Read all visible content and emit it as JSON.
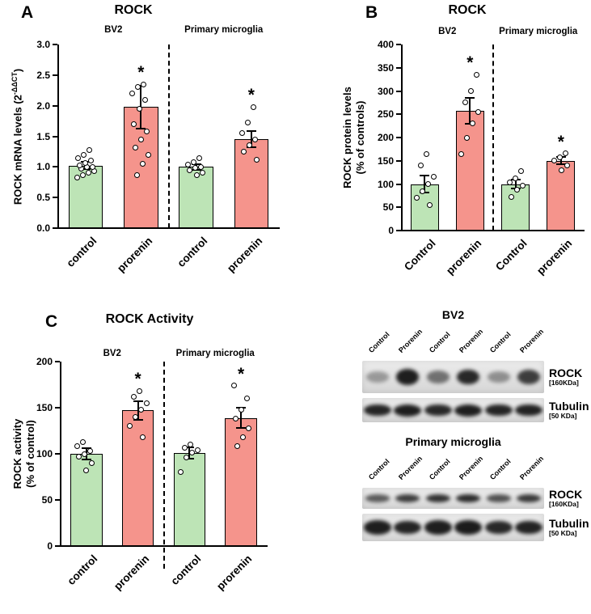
{
  "colors": {
    "control_bar": "#bde4b6",
    "prorenin_bar": "#f5948c",
    "axis": "#000000"
  },
  "chart_data": [
    {
      "id": "A",
      "type": "bar",
      "panel_letter": "A",
      "title": "ROCK",
      "group_labels": [
        "BV2",
        "Primary microglia"
      ],
      "categories": [
        "control",
        "prorenin",
        "control",
        "prorenin"
      ],
      "bar_colors": [
        "control",
        "prorenin",
        "control",
        "prorenin"
      ],
      "values": [
        1.02,
        1.98,
        1.0,
        1.45
      ],
      "errors": [
        0.06,
        0.35,
        0.05,
        0.13
      ],
      "significance": [
        false,
        true,
        false,
        true
      ],
      "significance_marker": "*",
      "points": [
        [
          0.82,
          0.86,
          0.9,
          0.93,
          0.97,
          1.0,
          1.0,
          1.03,
          1.06,
          1.1,
          1.14,
          1.2,
          1.28
        ],
        [
          0.86,
          1.05,
          1.2,
          1.32,
          1.45,
          1.58,
          1.7,
          1.95,
          2.1,
          2.2,
          2.3,
          2.35
        ],
        [
          0.86,
          0.9,
          0.95,
          0.98,
          1.0,
          1.04,
          1.08,
          1.14
        ],
        [
          1.12,
          1.25,
          1.35,
          1.45,
          1.55,
          1.72,
          1.98
        ]
      ],
      "ylabel": {
        "parts": [
          {
            "t": "ROCK mRNA levels (2"
          },
          {
            "t": "-ΔΔCT",
            "sup": true
          },
          {
            "t": ")"
          }
        ]
      },
      "ylim": [
        0,
        3.0
      ],
      "yticks": [
        0.0,
        0.5,
        1.0,
        1.5,
        2.0,
        2.5,
        3.0
      ],
      "ytick_decimals": 1,
      "legend": "off",
      "grid": "off"
    },
    {
      "id": "B",
      "type": "bar",
      "panel_letter": "B",
      "title": "ROCK",
      "group_labels": [
        "BV2",
        "Primary microglia"
      ],
      "categories": [
        "Control",
        "prorenin",
        "Control",
        "prorenin"
      ],
      "bar_colors": [
        "control",
        "prorenin",
        "control",
        "prorenin"
      ],
      "values": [
        100,
        258,
        100,
        150
      ],
      "errors": [
        18,
        28,
        10,
        8
      ],
      "significance": [
        false,
        true,
        false,
        true
      ],
      "significance_marker": "*",
      "points": [
        [
          55,
          70,
          85,
          100,
          115,
          140,
          165
        ],
        [
          165,
          200,
          230,
          255,
          275,
          300,
          335
        ],
        [
          72,
          88,
          96,
          104,
          112,
          128
        ],
        [
          130,
          140,
          150,
          158,
          166
        ]
      ],
      "ylabel": {
        "parts": [
          {
            "t": "ROCK protein levels"
          },
          {
            "br": true
          },
          {
            "t": "(% of controls)"
          }
        ]
      },
      "ylim": [
        0,
        400
      ],
      "yticks": [
        0,
        50,
        100,
        150,
        200,
        250,
        300,
        350,
        400
      ],
      "ytick_decimals": 0,
      "legend": "off",
      "grid": "off"
    },
    {
      "id": "C",
      "type": "bar",
      "panel_letter": "C",
      "title": "ROCK Activity",
      "group_labels": [
        "BV2",
        "Primary microglia"
      ],
      "categories": [
        "control",
        "prorenin",
        "control",
        "prorenin"
      ],
      "bar_colors": [
        "control",
        "prorenin",
        "control",
        "prorenin"
      ],
      "values": [
        100,
        147,
        101,
        139
      ],
      "errors": [
        6,
        10,
        6,
        11
      ],
      "significance": [
        false,
        true,
        false,
        true
      ],
      "significance_marker": "*",
      "points": [
        [
          82,
          90,
          97,
          100,
          103,
          108,
          113
        ],
        [
          118,
          130,
          140,
          148,
          155,
          162,
          168
        ],
        [
          80,
          96,
          101,
          104,
          107,
          110
        ],
        [
          108,
          118,
          128,
          138,
          148,
          160,
          174
        ]
      ],
      "ylabel": {
        "parts": [
          {
            "t": "ROCK activity"
          },
          {
            "br": true
          },
          {
            "t": "(% of control)"
          }
        ]
      },
      "ylim": [
        0,
        200
      ],
      "yticks": [
        0,
        50,
        100,
        150,
        200
      ],
      "ytick_decimals": 0,
      "legend": "off",
      "grid": "off"
    }
  ],
  "blots": {
    "groups": [
      {
        "title": "BV2",
        "lane_labels": [
          "Control",
          "Prorenin",
          "Control",
          "Prorenin",
          "Control",
          "Prorenin"
        ],
        "rows": [
          {
            "label": "ROCK",
            "kda": "[160KDa]",
            "strip_height": 40,
            "band_height": 18,
            "band_width": 28,
            "bands": [
              0.35,
              0.95,
              0.55,
              0.9,
              0.4,
              0.8
            ]
          },
          {
            "label": "Tubulin",
            "kda": "[50 KDa]",
            "strip_height": 30,
            "band_height": 14,
            "band_width": 34,
            "bands": [
              0.92,
              0.95,
              0.9,
              0.95,
              0.92,
              0.93
            ]
          }
        ]
      },
      {
        "title": "Primary microglia",
        "lane_labels": [
          "Control",
          "Prorenin",
          "Control",
          "Prorenin",
          "Control",
          "Prorenin"
        ],
        "rows": [
          {
            "label": "ROCK",
            "kda": "[160KDa]",
            "strip_height": 26,
            "band_height": 10,
            "band_width": 30,
            "bands": [
              0.65,
              0.8,
              0.85,
              0.88,
              0.7,
              0.82
            ]
          },
          {
            "label": "Tubulin",
            "kda": "[50 KDa]",
            "strip_height": 34,
            "band_height": 16,
            "band_width": 34,
            "bands": [
              0.95,
              0.92,
              0.95,
              0.96,
              0.9,
              0.93
            ]
          }
        ]
      }
    ]
  }
}
